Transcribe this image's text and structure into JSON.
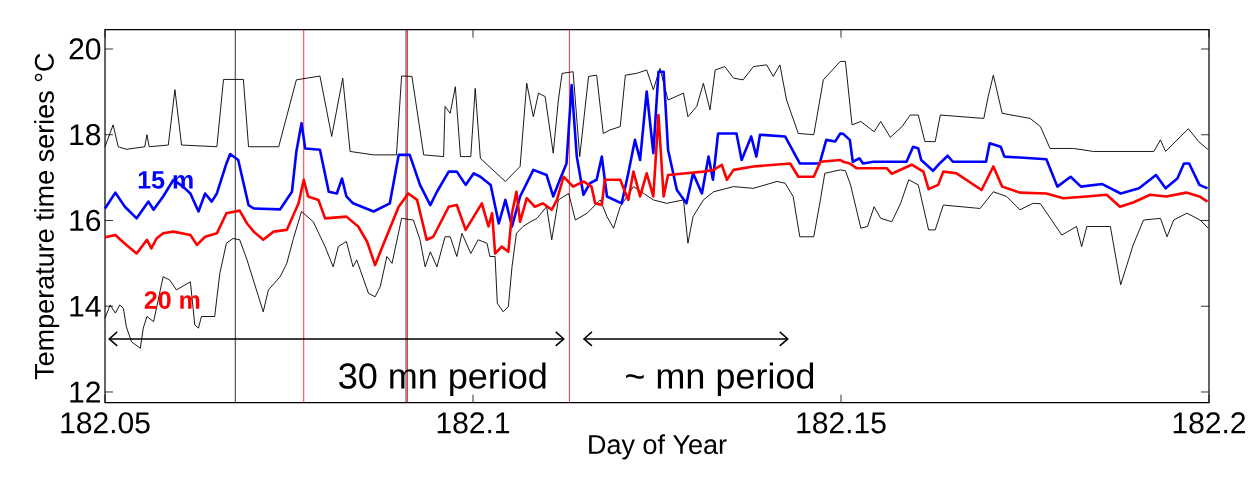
{
  "chart_data": {
    "type": "line",
    "xlabel": "Day of Year",
    "ylabel": "Temperature time series °C",
    "xlim": [
      182.05,
      182.2
    ],
    "ylim": [
      11.75,
      20.45
    ],
    "xticks": [
      182.05,
      182.1,
      182.15,
      182.2
    ],
    "yticks": [
      12,
      14,
      16,
      18,
      20
    ],
    "marker": "none",
    "line_style": "solid",
    "annotations": [
      "30 mn period",
      "~ mn period"
    ],
    "ref_lines": [
      {
        "axis": "x",
        "value": 182.0677,
        "color": "#000000"
      },
      {
        "axis": "x",
        "value": 182.077,
        "color": "#ff0000"
      },
      {
        "axis": "x",
        "value": 182.0909,
        "color": "#000000"
      },
      {
        "axis": "x",
        "value": 182.0911,
        "color": "#ff0000"
      },
      {
        "axis": "x",
        "value": 182.1131,
        "color": "#ff0000"
      }
    ],
    "series": [
      {
        "color": "#000000",
        "x": [
          182.05,
          182.0511,
          182.0518,
          182.0529,
          182.0554,
          182.0557,
          182.056,
          182.0586,
          182.0595,
          182.0604,
          182.0652,
          182.0661,
          182.0688,
          182.0695,
          182.0736,
          182.076,
          182.0792,
          182.0801,
          182.0808,
          182.0823,
          182.0833,
          182.0865,
          182.0896,
          182.0903,
          182.0917,
          182.0933,
          182.096,
          182.0962,
          182.0969,
          182.0976,
          182.0983,
          182.0997,
          182.1003,
          182.101,
          182.1037,
          182.1044,
          182.1064,
          182.1073,
          182.1082,
          182.1089,
          182.1098,
          182.1109,
          182.1116,
          182.1121,
          182.1136,
          182.1145,
          182.1157,
          182.1168,
          182.1177,
          182.1186,
          182.12,
          182.1207,
          182.1222,
          182.1236,
          182.1245,
          182.1254,
          182.1265,
          182.1286,
          182.1292,
          182.1304,
          182.1313,
          182.1322,
          182.1329,
          182.1342,
          182.1354,
          182.1367,
          182.1381,
          182.1399,
          182.1408,
          182.1417,
          182.1426,
          182.1442,
          182.1463,
          182.1476,
          182.1499,
          182.1506,
          182.1515,
          182.1527,
          182.1545,
          182.1554,
          182.1567,
          182.1583,
          182.1594,
          182.1605,
          182.1614,
          182.1628,
          182.1635,
          182.1694,
          182.17,
          182.1707,
          182.1719,
          182.1757,
          182.1771,
          182.1784,
          182.1816,
          182.1843,
          182.1925,
          182.1934,
          182.1941,
          182.1972,
          182.1986,
          182.1999
        ],
        "values": [
          17.72,
          18.23,
          17.72,
          17.66,
          17.72,
          18.0,
          17.72,
          17.76,
          19.05,
          17.76,
          17.72,
          19.29,
          19.29,
          17.72,
          17.72,
          19.28,
          19.37,
          18.58,
          17.96,
          19.32,
          17.61,
          17.53,
          17.53,
          19.37,
          19.36,
          17.53,
          17.49,
          18.66,
          18.5,
          19.12,
          17.49,
          17.49,
          19.08,
          17.45,
          17.02,
          16.91,
          17.26,
          19.2,
          18.42,
          18.97,
          18.89,
          17.57,
          18.81,
          19.43,
          19.47,
          17.49,
          19.36,
          19.39,
          18.03,
          18.11,
          18.19,
          19.39,
          19.43,
          19.51,
          19.05,
          19.55,
          18.81,
          18.97,
          18.42,
          18.66,
          19.2,
          18.58,
          19.51,
          19.59,
          19.32,
          19.28,
          19.59,
          19.63,
          19.36,
          19.63,
          18.81,
          18.03,
          18.0,
          19.28,
          19.71,
          19.71,
          18.23,
          18.31,
          18.07,
          18.31,
          17.94,
          18.19,
          18.46,
          18.46,
          17.84,
          17.84,
          18.46,
          18.38,
          18.89,
          19.39,
          18.5,
          18.38,
          18.19,
          17.68,
          17.68,
          17.61,
          17.61,
          17.88,
          17.61,
          18.14,
          17.84,
          17.65
        ]
      },
      {
        "color": "#000000",
        "x": [
          182.05,
          182.0507,
          182.0514,
          182.052,
          182.0525,
          182.0529,
          182.0536,
          182.0548,
          182.0552,
          182.0557,
          182.0566,
          182.0579,
          182.0588,
          182.0597,
          182.0616,
          182.0622,
          182.0627,
          182.0631,
          182.0649,
          182.0656,
          182.0665,
          182.0674,
          182.0683,
          182.0693,
          182.0715,
          182.0722,
          182.0738,
          182.0747,
          182.0756,
          182.0767,
          182.0783,
          182.0799,
          182.081,
          182.0817,
          182.0828,
          182.0837,
          182.0842,
          182.0858,
          182.0867,
          182.0874,
          182.0883,
          182.089,
          182.0903,
          182.0919,
          182.0928,
          182.0935,
          182.0942,
          182.0951,
          182.0962,
          182.0969,
          182.0978,
          182.0985,
          182.0997,
          182.1007,
          182.1019,
          182.1023,
          182.103,
          182.1033,
          182.1041,
          182.1048,
          182.1053,
          182.1059,
          182.1068,
          182.1078,
          182.1087,
          182.11,
          182.1107,
          182.1116,
          182.113,
          182.1139,
          182.1155,
          182.1173,
          182.1182,
          182.1191,
          182.12,
          182.1218,
          182.1245,
          182.1263,
          182.1286,
          182.1292,
          182.1299,
          182.1313,
          182.1327,
          182.1354,
          182.1381,
          182.1413,
          182.1424,
          182.1435,
          182.1444,
          182.1463,
          182.1472,
          182.1478,
          182.1499,
          182.1506,
          182.1513,
          182.1527,
          182.1536,
          182.1545,
          182.1554,
          182.1569,
          182.1581,
          182.1592,
          182.1605,
          182.1619,
          182.1628,
          182.1639,
          182.1689,
          182.1707,
          182.1725,
          182.1743,
          182.1761,
          182.1771,
          182.18,
          182.182,
          182.1827,
          182.1834,
          182.1866,
          182.188,
          182.1897,
          182.1911,
          182.1934,
          182.1943,
          182.1952,
          182.197,
          182.1988,
          182.1999
        ],
        "values": [
          13.72,
          14.03,
          13.84,
          14.03,
          13.95,
          13.52,
          13.17,
          13.02,
          13.49,
          13.76,
          13.64,
          14.69,
          14.61,
          14.38,
          14.57,
          13.56,
          13.49,
          13.76,
          13.76,
          14.77,
          15.47,
          15.58,
          15.55,
          15.08,
          13.87,
          14.38,
          14.69,
          15.0,
          15.58,
          16.21,
          15.97,
          15.39,
          14.92,
          15.39,
          15.51,
          14.92,
          15.08,
          14.3,
          14.22,
          14.46,
          15.16,
          15.0,
          16.05,
          16.01,
          15.55,
          14.92,
          15.27,
          14.92,
          15.62,
          15.62,
          15.16,
          15.7,
          15.23,
          15.55,
          15.47,
          15.16,
          15.16,
          14.07,
          13.87,
          13.99,
          14.92,
          15.7,
          15.86,
          15.97,
          16.05,
          16.32,
          15.55,
          16.48,
          16.63,
          16.01,
          16.17,
          16.48,
          16.09,
          15.82,
          16.32,
          16.79,
          16.48,
          16.4,
          16.48,
          15.47,
          16.09,
          16.48,
          16.67,
          16.79,
          16.75,
          16.91,
          16.87,
          16.56,
          15.62,
          15.62,
          16.48,
          17.1,
          17.18,
          17.16,
          16.83,
          15.82,
          15.86,
          16.32,
          16.05,
          15.97,
          16.4,
          16.95,
          16.83,
          15.78,
          15.78,
          16.36,
          16.28,
          16.67,
          16.56,
          16.25,
          16.4,
          16.39,
          15.66,
          15.86,
          15.39,
          15.86,
          15.86,
          14.5,
          15.43,
          16.01,
          16.05,
          15.62,
          16.01,
          16.17,
          16.01,
          15.82
        ]
      },
      {
        "name": "15 m",
        "color": "#0000ff",
        "x": [
          182.05,
          182.0514,
          182.0527,
          182.0543,
          182.0559,
          182.0566,
          182.0579,
          182.0593,
          182.0606,
          182.0616,
          182.0627,
          182.0636,
          182.0645,
          182.0652,
          182.0665,
          182.067,
          182.0681,
          182.0695,
          182.0702,
          182.0738,
          182.0754,
          182.076,
          182.0767,
          182.0772,
          182.0792,
          182.0804,
          182.0815,
          182.0822,
          182.0828,
          182.0837,
          182.0865,
          182.0887,
          182.0899,
          182.0914,
          182.0928,
          182.0942,
          182.0951,
          182.0967,
          182.0978,
          182.099,
          182.1001,
          182.101,
          182.1024,
          182.1035,
          182.1044,
          182.1053,
          182.1064,
          182.1082,
          182.11,
          182.1109,
          182.1118,
          182.1127,
          182.1134,
          182.1141,
          182.115,
          182.1159,
          182.1168,
          182.1175,
          182.1182,
          182.1202,
          182.1211,
          182.122,
          182.1227,
          182.1236,
          182.1245,
          182.1252,
          182.1259,
          182.1265,
          182.1277,
          182.129,
          182.1299,
          182.1311,
          182.132,
          182.1326,
          182.1333,
          182.1358,
          182.1365,
          182.1378,
          182.1385,
          182.139,
          182.1424,
          182.1444,
          182.1471,
          182.148,
          182.1492,
          182.1499,
          182.1503,
          182.1512,
          182.1516,
          182.1525,
          182.153,
          182.1544,
          182.1589,
          182.1598,
          182.1605,
          182.1609,
          182.1625,
          182.1634,
          182.1645,
          182.1652,
          182.1697,
          182.1702,
          182.1717,
          182.1722,
          182.1779,
          182.1794,
          182.1812,
          182.1826,
          182.1855,
          182.188,
          182.1905,
          182.1928,
          182.1941,
          182.1957,
          182.1966,
          182.1973,
          182.1987,
          182.1998
        ],
        "values": [
          16.28,
          16.65,
          16.32,
          16.05,
          16.44,
          16.25,
          16.56,
          16.95,
          16.79,
          16.63,
          16.21,
          16.63,
          16.44,
          16.63,
          17.33,
          17.55,
          17.41,
          16.36,
          16.28,
          16.26,
          16.67,
          17.61,
          18.27,
          17.68,
          17.65,
          16.67,
          16.63,
          16.98,
          16.56,
          16.4,
          16.21,
          16.4,
          17.53,
          17.53,
          16.83,
          16.36,
          16.67,
          17.14,
          17.14,
          16.83,
          17.1,
          17.02,
          16.83,
          15.93,
          16.48,
          15.86,
          16.56,
          17.18,
          17.06,
          16.56,
          16.95,
          17.33,
          19.16,
          17.49,
          16.6,
          16.87,
          16.95,
          17.49,
          16.56,
          16.4,
          17.1,
          17.88,
          17.41,
          19.01,
          17.57,
          19.47,
          19.47,
          17.65,
          16.71,
          16.4,
          17.1,
          16.63,
          17.49,
          16.95,
          18.03,
          18.03,
          17.41,
          17.96,
          17.49,
          18.0,
          17.96,
          17.33,
          17.33,
          17.88,
          17.84,
          18.03,
          18.02,
          17.88,
          17.37,
          17.45,
          17.33,
          17.37,
          17.37,
          17.72,
          17.68,
          17.41,
          17.16,
          17.33,
          17.51,
          17.37,
          17.37,
          17.8,
          17.72,
          17.49,
          17.43,
          16.79,
          17.02,
          16.79,
          16.85,
          16.63,
          16.75,
          17.06,
          16.75,
          16.98,
          17.33,
          17.33,
          16.83,
          16.75
        ]
      },
      {
        "name": "20 m",
        "color": "#ff0000",
        "x": [
          182.05,
          182.0514,
          182.0529,
          182.0543,
          182.0557,
          182.0563,
          182.057,
          182.0579,
          182.0593,
          182.0616,
          182.0625,
          182.0636,
          182.0652,
          182.0665,
          182.0683,
          182.0693,
          182.0702,
          182.0715,
          182.0729,
          182.0747,
          182.0763,
          182.077,
          182.0776,
          182.079,
          182.0799,
          182.0828,
          182.0844,
          182.0856,
          182.0867,
          182.0876,
          182.0899,
          182.0912,
          182.0924,
          182.0937,
          182.0946,
          182.0967,
          182.0978,
          182.099,
          182.1001,
          182.1012,
          182.1021,
          182.1026,
          182.103,
          182.1039,
          182.1048,
          182.1053,
          182.1059,
          182.1064,
          182.1073,
          182.1084,
          182.1095,
          182.1107,
          182.1114,
          182.1123,
          182.1136,
          182.115,
          182.1161,
          182.1166,
          182.1175,
          182.1179,
          182.12,
          182.1211,
          182.1218,
          182.1227,
          182.1236,
          182.1245,
          182.1252,
          182.1259,
          182.1265,
          182.129,
          182.1313,
          182.1327,
          182.1338,
          182.1345,
          182.1354,
          182.1381,
          182.1431,
          182.1442,
          182.1463,
          182.1472,
          182.1499,
          182.1503,
          182.1512,
          182.1521,
          182.1562,
          182.1569,
          182.1596,
          182.1612,
          182.1619,
          182.1632,
          182.1639,
          182.1657,
          182.1691,
          182.1707,
          182.1719,
          182.1743,
          182.1779,
          182.1802,
          182.1834,
          182.1861,
          182.1879,
          182.1897,
          182.192,
          182.1942,
          182.1969,
          182.1987,
          182.1998
        ],
        "values": [
          15.61,
          15.66,
          15.43,
          15.23,
          15.55,
          15.35,
          15.58,
          15.7,
          15.74,
          15.66,
          15.43,
          15.62,
          15.7,
          16.17,
          16.23,
          15.93,
          15.74,
          15.55,
          15.74,
          15.78,
          16.4,
          16.95,
          16.56,
          16.48,
          16.05,
          16.09,
          15.86,
          15.51,
          14.96,
          15.35,
          16.32,
          16.63,
          16.48,
          15.55,
          15.62,
          16.32,
          16.36,
          15.78,
          16.09,
          16.4,
          15.86,
          16.17,
          15.23,
          15.39,
          15.27,
          16.17,
          16.67,
          15.97,
          16.52,
          16.32,
          16.4,
          16.25,
          16.48,
          17.02,
          16.79,
          16.91,
          16.79,
          16.4,
          16.36,
          16.95,
          16.95,
          16.48,
          17.14,
          16.56,
          17.1,
          16.56,
          18.46,
          16.56,
          17.06,
          17.1,
          17.14,
          17.18,
          17.3,
          16.95,
          17.18,
          17.26,
          17.33,
          17.02,
          17.02,
          17.37,
          17.41,
          17.37,
          17.33,
          17.22,
          17.22,
          17.09,
          17.3,
          17.14,
          16.73,
          16.83,
          17.14,
          17.1,
          16.71,
          17.26,
          16.79,
          16.65,
          16.63,
          16.52,
          16.56,
          16.6,
          16.32,
          16.42,
          16.6,
          16.56,
          16.65,
          16.56,
          16.44
        ]
      }
    ]
  }
}
